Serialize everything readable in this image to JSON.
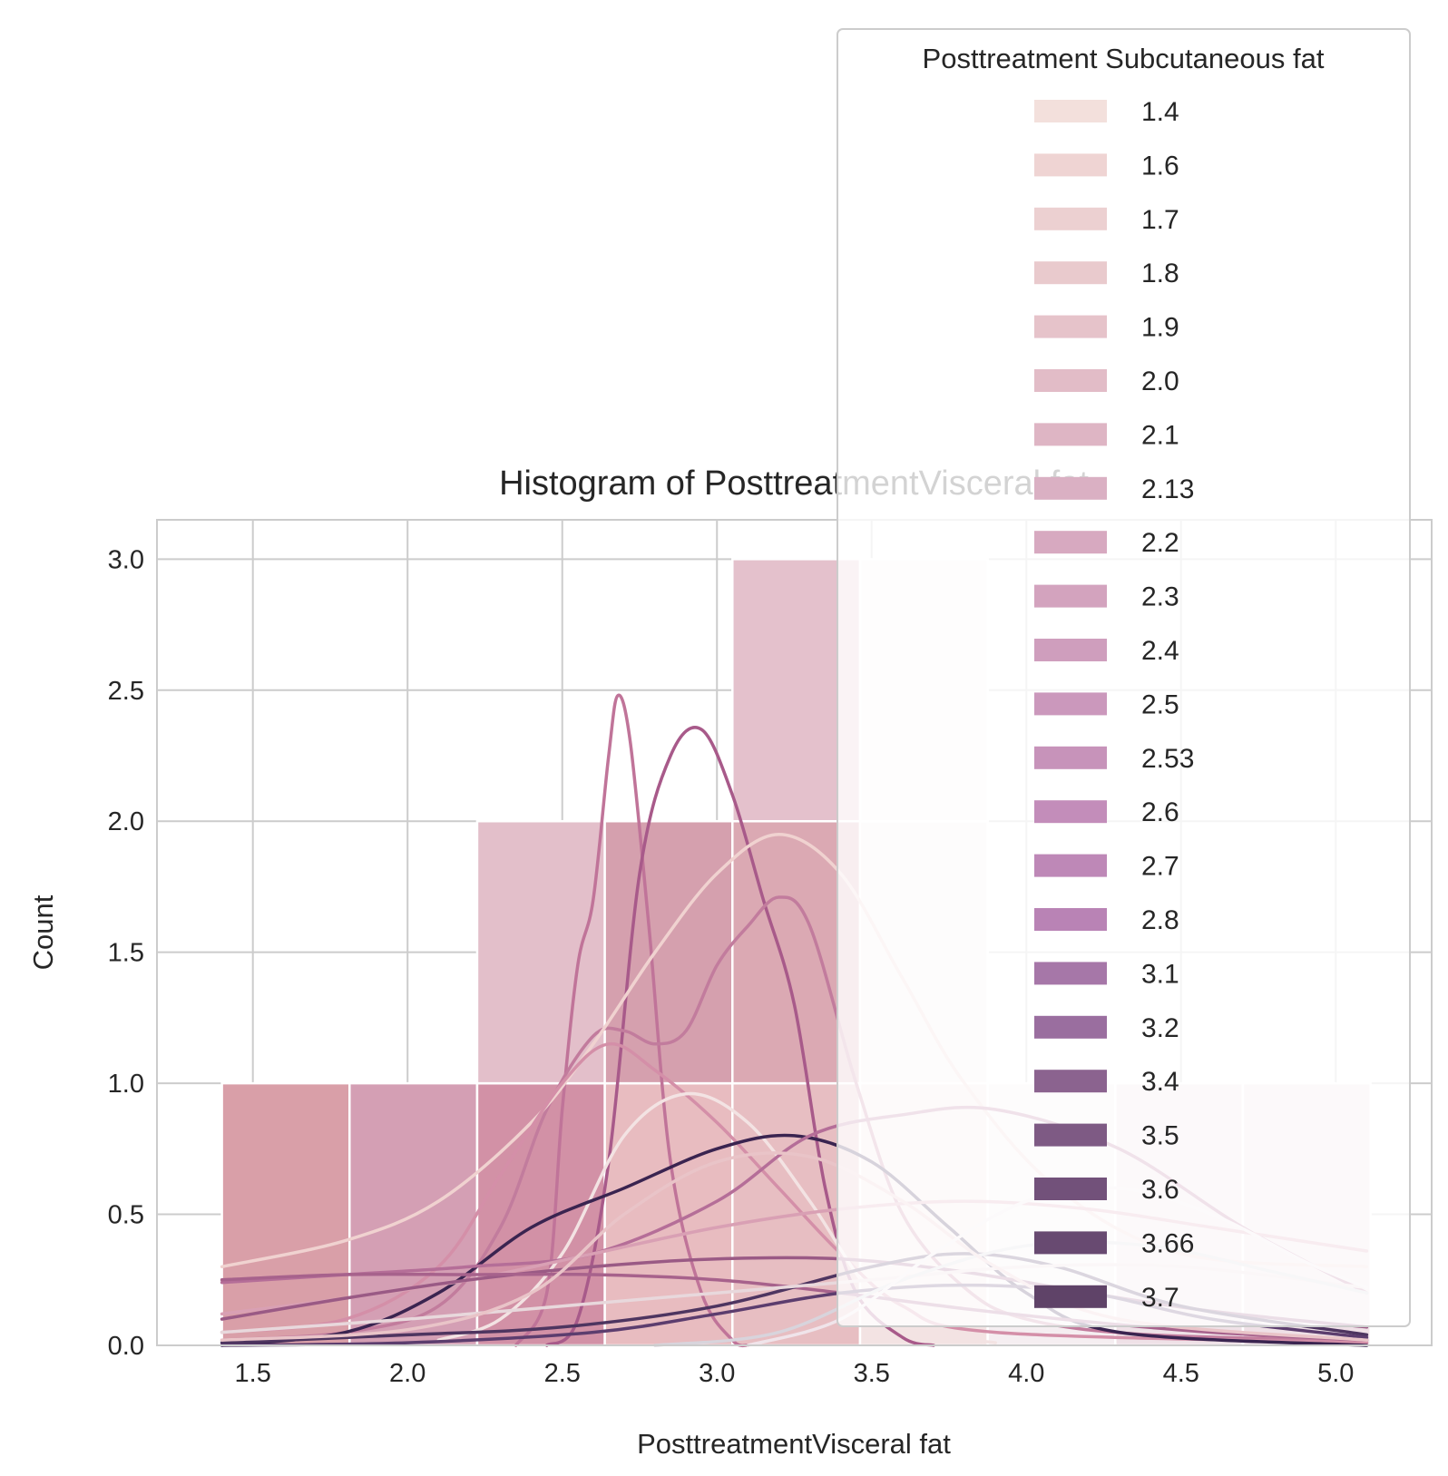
{
  "chart_data": {
    "type": "histogram",
    "title": "Histogram of PosttreatmentVisceral fat",
    "xlabel": "PosttreatmentVisceral fat",
    "ylabel": "Count",
    "xlim": [
      1.19,
      5.31
    ],
    "ylim": [
      0,
      3.15
    ],
    "xticks": [
      1.5,
      2.0,
      2.5,
      3.0,
      3.5,
      4.0,
      4.5,
      5.0
    ],
    "yticks": [
      0.0,
      0.5,
      1.0,
      1.5,
      2.0,
      2.5,
      3.0
    ],
    "grid": true,
    "legend": {
      "title": "Posttreatment Subcutaneous fat",
      "placement": "top-right",
      "entries": [
        "1.4",
        "1.6",
        "1.7",
        "1.8",
        "1.9",
        "2.0",
        "2.1",
        "2.13",
        "2.2",
        "2.3",
        "2.4",
        "2.5",
        "2.53",
        "2.6",
        "2.7",
        "2.8",
        "3.1",
        "3.2",
        "3.4",
        "3.5",
        "3.6",
        "3.66",
        "3.7"
      ],
      "colors": [
        "#f3e0dc",
        "#efd4d3",
        "#ecd0d1",
        "#e9cacd",
        "#e6c3ca",
        "#e2bcc7",
        "#deb5c4",
        "#dab0c3",
        "#d7a9c0",
        "#d3a3be",
        "#cf9ebd",
        "#cb98bc",
        "#c793ba",
        "#c38dba",
        "#be88b7",
        "#b983b5",
        "#a677a8",
        "#9a6e9f",
        "#8b638f",
        "#7e5a84",
        "#72517a",
        "#684a71",
        "#5f4368"
      ]
    },
    "bins": [
      {
        "x0": 1.4,
        "x1": 1.8125,
        "segments": [
          {
            "color": "#d99fa8",
            "count": 1
          }
        ]
      },
      {
        "x0": 1.8125,
        "x1": 2.225,
        "segments": [
          {
            "color": "#d49fb4",
            "count": 1
          }
        ]
      },
      {
        "x0": 2.225,
        "x1": 2.6375,
        "segments": [
          {
            "color": "#d291a6",
            "count": 1
          },
          {
            "color": "#e3bfca",
            "count": 1
          }
        ]
      },
      {
        "x0": 2.6375,
        "x1": 3.05,
        "segments": [
          {
            "color": "#e8bcc0",
            "count": 1
          },
          {
            "color": "#d5a0ae",
            "count": 1
          }
        ]
      },
      {
        "x0": 3.05,
        "x1": 3.4625,
        "segments": [
          {
            "color": "#e7bec2",
            "count": 1
          },
          {
            "color": "#dba9b3",
            "count": 1
          },
          {
            "color": "#e4c1cc",
            "count": 1
          }
        ]
      },
      {
        "x0": 3.4625,
        "x1": 3.875,
        "segments": [
          {
            "color": "#f3e3e3",
            "count": 1
          },
          {
            "color": "#f6eeee",
            "count": 1
          },
          {
            "color": "#f9f4f4",
            "count": 1
          }
        ]
      },
      {
        "x0": 3.875,
        "x1": 4.2875,
        "segments": [
          {
            "color": "#f5eef1",
            "count": 1
          }
        ]
      },
      {
        "x0": 4.2875,
        "x1": 4.7,
        "segments": [
          {
            "color": "#efe1e7",
            "count": 1
          }
        ]
      },
      {
        "x0": 4.7,
        "x1": 5.1125,
        "segments": [
          {
            "color": "#efe0e6",
            "count": 1
          }
        ]
      }
    ],
    "kde_curves": [
      {
        "color": "#c07499",
        "points": [
          [
            2.35,
            0.0
          ],
          [
            2.45,
            0.2
          ],
          [
            2.5,
            0.9
          ],
          [
            2.55,
            1.45
          ],
          [
            2.6,
            1.7
          ],
          [
            2.65,
            2.25
          ],
          [
            2.68,
            2.48
          ],
          [
            2.72,
            2.3
          ],
          [
            2.78,
            1.6
          ],
          [
            2.85,
            0.7
          ],
          [
            2.95,
            0.2
          ],
          [
            3.05,
            0.02
          ],
          [
            3.1,
            0.0
          ]
        ]
      },
      {
        "color": "#a85a8a",
        "points": [
          [
            2.45,
            0.0
          ],
          [
            2.55,
            0.1
          ],
          [
            2.65,
            0.7
          ],
          [
            2.75,
            1.8
          ],
          [
            2.85,
            2.25
          ],
          [
            2.95,
            2.35
          ],
          [
            3.05,
            2.1
          ],
          [
            3.15,
            1.7
          ],
          [
            3.25,
            1.3
          ],
          [
            3.35,
            0.6
          ],
          [
            3.45,
            0.2
          ],
          [
            3.6,
            0.03
          ],
          [
            3.7,
            0.0
          ]
        ]
      },
      {
        "color": "#c27c9d",
        "points": [
          [
            1.4,
            0.02
          ],
          [
            1.8,
            0.05
          ],
          [
            2.1,
            0.15
          ],
          [
            2.3,
            0.45
          ],
          [
            2.45,
            0.9
          ],
          [
            2.6,
            1.18
          ],
          [
            2.7,
            1.2
          ],
          [
            2.8,
            1.15
          ],
          [
            2.9,
            1.2
          ],
          [
            3.0,
            1.45
          ],
          [
            3.1,
            1.6
          ],
          [
            3.2,
            1.71
          ],
          [
            3.3,
            1.6
          ],
          [
            3.45,
            1.0
          ],
          [
            3.6,
            0.5
          ],
          [
            3.8,
            0.22
          ],
          [
            4.0,
            0.1
          ],
          [
            4.4,
            0.04
          ],
          [
            5.1,
            0.02
          ]
        ]
      },
      {
        "color": "#f0d2d0",
        "points": [
          [
            1.4,
            0.3
          ],
          [
            1.8,
            0.4
          ],
          [
            2.1,
            0.55
          ],
          [
            2.4,
            0.85
          ],
          [
            2.6,
            1.15
          ],
          [
            2.8,
            1.5
          ],
          [
            3.0,
            1.8
          ],
          [
            3.2,
            1.95
          ],
          [
            3.4,
            1.8
          ],
          [
            3.6,
            1.4
          ],
          [
            3.8,
            1.0
          ],
          [
            4.1,
            0.6
          ],
          [
            4.5,
            0.35
          ],
          [
            5.1,
            0.3
          ]
        ]
      },
      {
        "color": "#d48fa8",
        "points": [
          [
            1.4,
            0.05
          ],
          [
            1.8,
            0.1
          ],
          [
            2.1,
            0.3
          ],
          [
            2.3,
            0.65
          ],
          [
            2.5,
            1.0
          ],
          [
            2.65,
            1.15
          ],
          [
            2.8,
            1.05
          ],
          [
            3.0,
            0.85
          ],
          [
            3.2,
            0.6
          ],
          [
            3.4,
            0.35
          ],
          [
            3.6,
            0.15
          ],
          [
            3.9,
            0.05
          ],
          [
            5.1,
            0.01
          ]
        ]
      },
      {
        "color": "#f3e3e3",
        "points": [
          [
            2.1,
            0.02
          ],
          [
            2.3,
            0.1
          ],
          [
            2.5,
            0.35
          ],
          [
            2.7,
            0.8
          ],
          [
            2.9,
            0.96
          ],
          [
            3.1,
            0.85
          ],
          [
            3.3,
            0.55
          ],
          [
            3.5,
            0.2
          ],
          [
            3.7,
            0.05
          ],
          [
            3.9,
            0.01
          ]
        ]
      },
      {
        "color": "#3a2450",
        "points": [
          [
            1.4,
            0.0
          ],
          [
            1.8,
            0.05
          ],
          [
            2.1,
            0.2
          ],
          [
            2.4,
            0.45
          ],
          [
            2.7,
            0.6
          ],
          [
            3.0,
            0.75
          ],
          [
            3.25,
            0.8
          ],
          [
            3.5,
            0.7
          ],
          [
            3.75,
            0.45
          ],
          [
            4.0,
            0.2
          ],
          [
            4.3,
            0.05
          ],
          [
            5.1,
            0.0
          ]
        ]
      },
      {
        "color": "#b56e98",
        "points": [
          [
            1.4,
            0.24
          ],
          [
            1.8,
            0.27
          ],
          [
            2.2,
            0.3
          ],
          [
            2.6,
            0.35
          ],
          [
            3.0,
            0.55
          ],
          [
            3.3,
            0.8
          ],
          [
            3.6,
            0.88
          ],
          [
            3.9,
            0.9
          ],
          [
            4.3,
            0.75
          ],
          [
            4.7,
            0.45
          ],
          [
            5.1,
            0.2
          ]
        ]
      },
      {
        "color": "#d9a0b4",
        "points": [
          [
            1.4,
            0.12
          ],
          [
            1.8,
            0.18
          ],
          [
            2.2,
            0.25
          ],
          [
            2.6,
            0.35
          ],
          [
            3.0,
            0.45
          ],
          [
            3.4,
            0.52
          ],
          [
            3.8,
            0.55
          ],
          [
            4.2,
            0.52
          ],
          [
            4.6,
            0.45
          ],
          [
            5.1,
            0.36
          ]
        ]
      },
      {
        "color": "#9a5a85",
        "points": [
          [
            1.4,
            0.1
          ],
          [
            1.8,
            0.18
          ],
          [
            2.2,
            0.25
          ],
          [
            2.6,
            0.3
          ],
          [
            3.0,
            0.33
          ],
          [
            3.4,
            0.33
          ],
          [
            3.8,
            0.28
          ],
          [
            4.2,
            0.2
          ],
          [
            4.6,
            0.13
          ],
          [
            5.1,
            0.07
          ]
        ]
      },
      {
        "color": "#a7628c",
        "points": [
          [
            1.4,
            0.25
          ],
          [
            1.8,
            0.27
          ],
          [
            2.2,
            0.27
          ],
          [
            2.6,
            0.27
          ],
          [
            3.0,
            0.25
          ],
          [
            3.4,
            0.2
          ],
          [
            3.8,
            0.14
          ],
          [
            4.2,
            0.09
          ],
          [
            4.6,
            0.05
          ],
          [
            5.1,
            0.02
          ]
        ]
      },
      {
        "color": "#4e3560",
        "points": [
          [
            1.4,
            0.01
          ],
          [
            2.0,
            0.04
          ],
          [
            2.5,
            0.07
          ],
          [
            3.0,
            0.15
          ],
          [
            3.5,
            0.3
          ],
          [
            3.8,
            0.35
          ],
          [
            4.1,
            0.3
          ],
          [
            4.5,
            0.15
          ],
          [
            5.1,
            0.04
          ]
        ]
      },
      {
        "color": "#5c3d6e",
        "points": [
          [
            1.4,
            0.0
          ],
          [
            2.0,
            0.01
          ],
          [
            2.6,
            0.05
          ],
          [
            3.0,
            0.12
          ],
          [
            3.4,
            0.2
          ],
          [
            3.8,
            0.23
          ],
          [
            4.2,
            0.2
          ],
          [
            4.6,
            0.1
          ],
          [
            5.1,
            0.03
          ]
        ]
      },
      {
        "color": "#e8d8dc",
        "points": [
          [
            1.4,
            0.05
          ],
          [
            2.0,
            0.1
          ],
          [
            2.5,
            0.15
          ],
          [
            3.0,
            0.2
          ],
          [
            3.5,
            0.25
          ],
          [
            4.0,
            0.3
          ],
          [
            4.5,
            0.3
          ],
          [
            5.1,
            0.22
          ]
        ]
      },
      {
        "color": "#d8d4dc",
        "points": [
          [
            2.8,
            0.0
          ],
          [
            3.2,
            0.05
          ],
          [
            3.6,
            0.25
          ],
          [
            4.0,
            0.38
          ],
          [
            4.4,
            0.38
          ],
          [
            4.8,
            0.28
          ],
          [
            5.1,
            0.2
          ]
        ]
      },
      {
        "color": "#e9c4c8",
        "points": [
          [
            1.4,
            0.02
          ],
          [
            2.0,
            0.06
          ],
          [
            2.4,
            0.2
          ],
          [
            2.7,
            0.5
          ],
          [
            3.0,
            0.7
          ],
          [
            3.3,
            0.72
          ],
          [
            3.6,
            0.55
          ],
          [
            3.9,
            0.3
          ],
          [
            4.3,
            0.1
          ],
          [
            5.1,
            0.02
          ]
        ]
      },
      {
        "color": "#f0e4ea",
        "points": [
          [
            3.1,
            0.0
          ],
          [
            3.4,
            0.1
          ],
          [
            3.7,
            0.35
          ],
          [
            4.0,
            0.55
          ],
          [
            4.3,
            0.6
          ],
          [
            4.6,
            0.5
          ],
          [
            4.9,
            0.32
          ],
          [
            5.1,
            0.22
          ]
        ]
      }
    ]
  }
}
